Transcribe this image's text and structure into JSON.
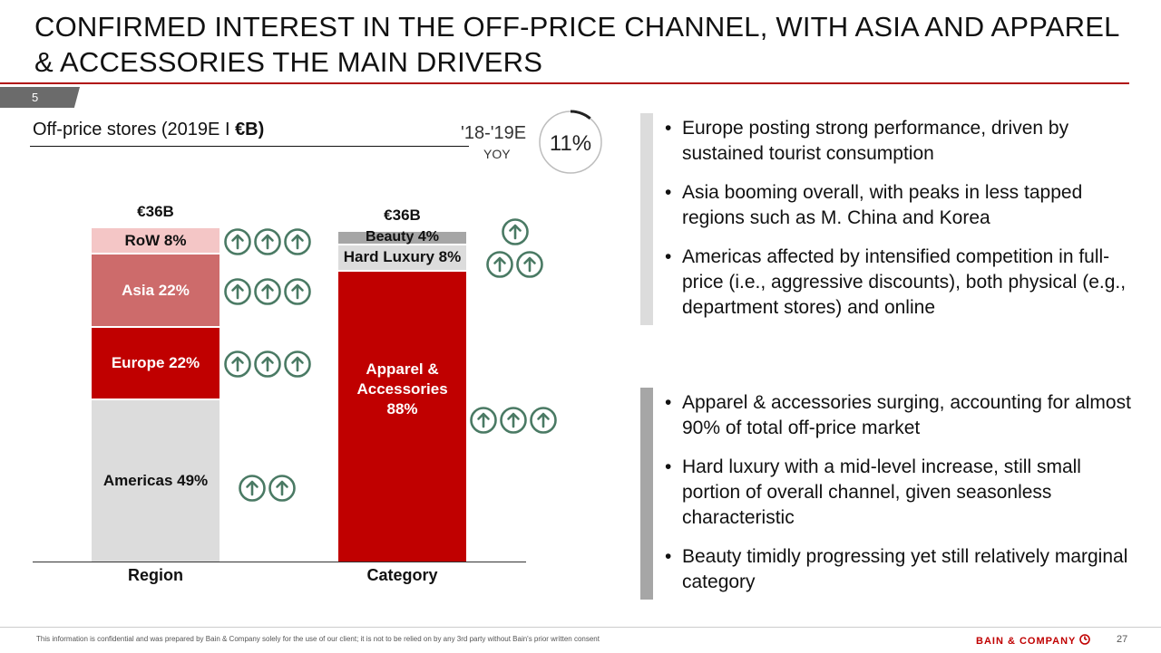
{
  "title": "CONFIRMED INTEREST IN THE OFF-PRICE CHANNEL, WITH ASIA AND APPAREL & ACCESSORIES THE MAIN DRIVERS",
  "page_tab": "5",
  "chart_title": {
    "prefix": "Off-price stores (2019E I ",
    "unit": "€B)"
  },
  "yoy": {
    "label": "'18-'19E",
    "sub": "YOY",
    "value": "11%",
    "fraction": 0.11
  },
  "colors": {
    "accent": "#c00000",
    "rule": "#b01010",
    "arrow": "#4a7a64",
    "light_gray": "#dcdcdc",
    "mid_gray": "#a6a6a6",
    "pink": "#f4c6c6",
    "rose": "#cd6b6b"
  },
  "chart_data": [
    {
      "type": "bar",
      "subtype": "stacked-100",
      "category": "Region",
      "total": "€36B",
      "ylim": [
        0,
        100
      ],
      "segments": [
        {
          "name": "Americas",
          "value": 49,
          "label": "Americas 49%",
          "color": "#dcdcdc",
          "text_color": "#111111",
          "growth_arrows": 2
        },
        {
          "name": "Europe",
          "value": 22,
          "label": "Europe 22%",
          "color": "#c00000",
          "text_color": "#ffffff",
          "growth_arrows": 3
        },
        {
          "name": "Asia",
          "value": 22,
          "label": "Asia 22%",
          "color": "#cd6b6b",
          "text_color": "#ffffff",
          "growth_arrows": 3
        },
        {
          "name": "RoW",
          "value": 8,
          "label": "RoW 8%",
          "color": "#f4c6c6",
          "text_color": "#111111",
          "growth_arrows": 3
        }
      ]
    },
    {
      "type": "bar",
      "subtype": "stacked-100",
      "category": "Category",
      "total": "€36B",
      "ylim": [
        0,
        100
      ],
      "segments": [
        {
          "name": "Apparel & Accessories",
          "value": 88,
          "label": "Apparel & Accessories 88%",
          "color": "#c00000",
          "text_color": "#ffffff",
          "growth_arrows": 3
        },
        {
          "name": "Hard Luxury",
          "value": 8,
          "label": "Hard Luxury 8%",
          "color": "#dcdcdc",
          "text_color": "#111111",
          "growth_arrows": 2
        },
        {
          "name": "Beauty",
          "value": 4,
          "label": "Beauty 4%",
          "color": "#a6a6a6",
          "text_color": "#111111",
          "growth_arrows": 1
        }
      ]
    }
  ],
  "bullets_top": [
    "Europe posting strong performance, driven by sustained tourist consumption",
    "Asia booming overall, with peaks in less tapped regions such as M. China and Korea",
    "Americas affected by intensified competition in full-price (i.e., aggressive discounts), both physical (e.g., department stores) and online"
  ],
  "bullets_bottom": [
    "Apparel & accessories surging, accounting for almost 90% of total off-price market",
    "Hard luxury with a mid-level increase, still small portion of overall channel, given seasonless characteristic",
    "Beauty timidly progressing yet still relatively marginal category"
  ],
  "footer": {
    "disclaimer": "This information is confidential and was prepared by Bain & Company solely for the use of our client; it is not to be relied on by any 3rd party without Bain's prior written consent",
    "brand": "BAIN & COMPANY",
    "page": "27"
  }
}
